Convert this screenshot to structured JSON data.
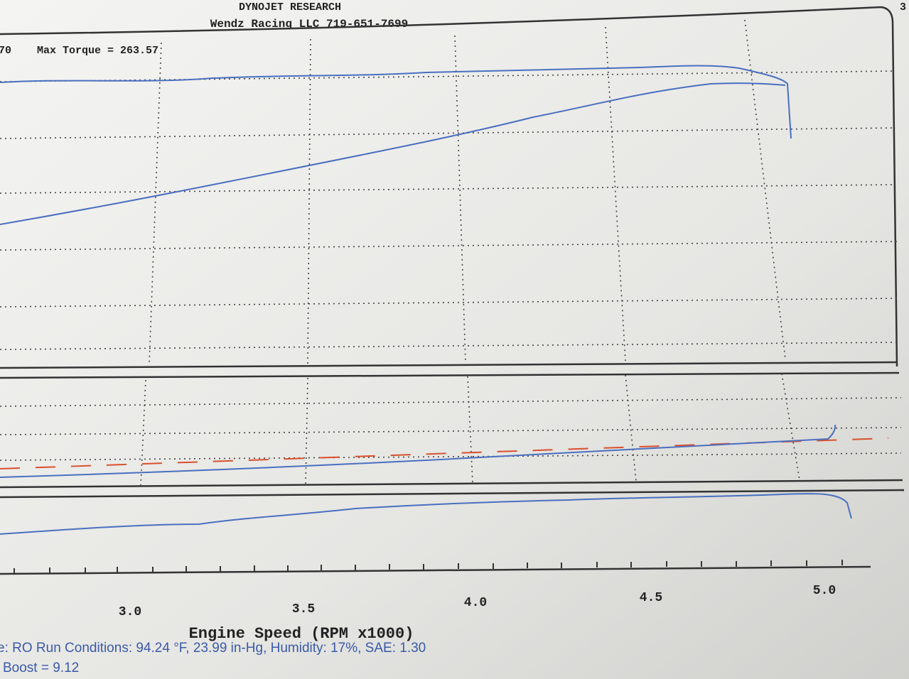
{
  "header": {
    "company": "DYNOJET RESEARCH",
    "shop": "Wendz Racing LLC  719-651-7699",
    "corner": "3"
  },
  "top_panel": {
    "axis_fragment": "70",
    "max_torque": "Max Torque = 263.57"
  },
  "x_axis": {
    "ticks": [
      "3.0",
      "3.5",
      "4.0",
      "4.5",
      "5.0"
    ],
    "label": "Engine Speed (RPM x1000)"
  },
  "footer": {
    "conditions": "e: RO  Run Conditions: 94.24 °F, 23.99 in-Hg, Humidity: 17%, SAE: 1.30",
    "boost": "Boost = 9.12"
  }
}
